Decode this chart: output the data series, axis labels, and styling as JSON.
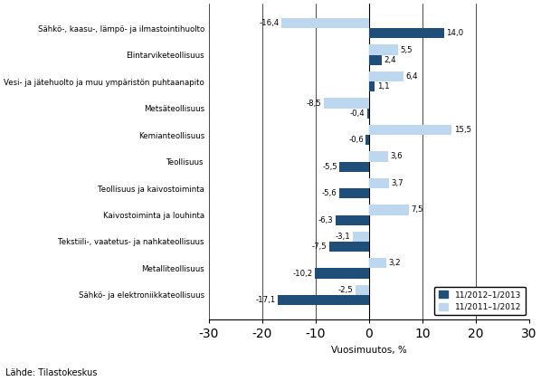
{
  "categories": [
    "Sähkö-, kaasu-, lämpö- ja ilmastointihuolto",
    "Elintarviketeollisuus",
    "Vesi- ja jätehuolto ja muu ympäristön puhtaanapito",
    "Metsäteollisuus",
    "Kemianteollisuus",
    "Teollisuus",
    "Teollisuus ja kaivostoiminta",
    "Kaivostoiminta ja louhinta",
    "Tekstiili-, vaatetus- ja nahkateollisuus",
    "Metalliteollisuus",
    "Sähkö- ja elektroniikkateollisuus"
  ],
  "series1_values": [
    14.0,
    2.4,
    1.1,
    -0.4,
    -0.6,
    -5.5,
    -5.6,
    -6.3,
    -7.5,
    -10.2,
    -17.1
  ],
  "series2_values": [
    -16.4,
    5.5,
    6.4,
    -8.5,
    15.5,
    3.6,
    3.7,
    7.5,
    -3.1,
    3.2,
    -2.5
  ],
  "series1_color": "#1F4E79",
  "series2_color": "#BDD7EE",
  "series1_label": "11/2012–1/2013",
  "series2_label": "11/2011–1/2012",
  "xlabel": "Vuosimuutos, %",
  "xlim": [
    -30,
    30
  ],
  "xticks": [
    -30,
    -20,
    -10,
    0,
    10,
    20,
    30
  ],
  "source_text": "Lähde: Tilastokeskus",
  "bar_height": 0.38
}
